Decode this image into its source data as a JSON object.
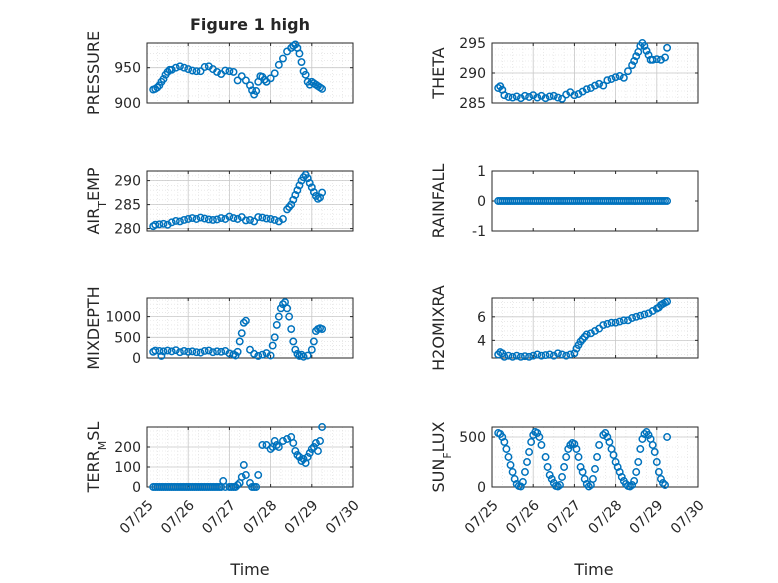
{
  "figure": {
    "title": "Figure 1 high",
    "xlabel": "Time"
  },
  "colors": {
    "marker": "#0072BD",
    "axes": "#262626",
    "grid": "#DCDCDC"
  },
  "chart_data": [
    {
      "type": "scatter",
      "ylabel": "PRESSURE",
      "xlim": [
        0,
        5
      ],
      "ylim": [
        900,
        985
      ],
      "yticks": [
        900,
        950
      ],
      "ytick_labels": [
        "900",
        "950"
      ],
      "xtick_labels": [],
      "title": "Figure 1 high",
      "grid": true,
      "x": [
        0.15,
        0.2,
        0.25,
        0.3,
        0.35,
        0.4,
        0.45,
        0.5,
        0.55,
        0.6,
        0.7,
        0.8,
        0.9,
        1.0,
        1.1,
        1.2,
        1.3,
        1.4,
        1.5,
        1.6,
        1.7,
        1.8,
        1.9,
        2.0,
        2.1,
        2.2,
        2.3,
        2.4,
        2.5,
        2.55,
        2.6,
        2.65,
        2.7,
        2.75,
        2.8,
        2.85,
        2.9,
        3.0,
        3.1,
        3.2,
        3.3,
        3.4,
        3.5,
        3.55,
        3.6,
        3.65,
        3.7,
        3.75,
        3.8,
        3.85,
        3.9,
        3.95,
        4.0,
        4.05,
        4.1,
        4.15,
        4.2,
        4.25
      ],
      "y": [
        919,
        920,
        922,
        925,
        930,
        934,
        940,
        944,
        947,
        947,
        950,
        952,
        950,
        948,
        946,
        945,
        945,
        951,
        952,
        948,
        944,
        941,
        946,
        945,
        944,
        932,
        938,
        932,
        925,
        918,
        912,
        917,
        930,
        938,
        937,
        933,
        930,
        935,
        942,
        954,
        963,
        973,
        978,
        981,
        983,
        978,
        970,
        958,
        945,
        940,
        930,
        926,
        930,
        928,
        926,
        924,
        922,
        920
      ]
    },
    {
      "type": "scatter",
      "ylabel": "THETA",
      "xlim": [
        0,
        5
      ],
      "ylim": [
        285,
        295
      ],
      "yticks": [
        285,
        290,
        295
      ],
      "ytick_labels": [
        "285",
        "290",
        "295"
      ],
      "xtick_labels": [],
      "grid": true,
      "x": [
        0.15,
        0.2,
        0.25,
        0.3,
        0.4,
        0.5,
        0.6,
        0.7,
        0.8,
        0.9,
        1.0,
        1.1,
        1.2,
        1.3,
        1.4,
        1.5,
        1.6,
        1.7,
        1.8,
        1.9,
        2.0,
        2.1,
        2.2,
        2.3,
        2.4,
        2.5,
        2.6,
        2.7,
        2.8,
        2.9,
        3.0,
        3.1,
        3.2,
        3.3,
        3.4,
        3.45,
        3.5,
        3.55,
        3.6,
        3.65,
        3.7,
        3.75,
        3.8,
        3.85,
        3.9,
        4.0,
        4.1,
        4.2,
        4.25
      ],
      "y": [
        287.5,
        287.8,
        287.2,
        286.3,
        286,
        285.9,
        286.1,
        285.8,
        286.2,
        286,
        286.3,
        285.9,
        286.2,
        285.8,
        286.1,
        286.2,
        285.9,
        285.7,
        286.4,
        286.8,
        286.3,
        286.5,
        286.9,
        287.3,
        287.5,
        287.9,
        288.2,
        287.9,
        288.8,
        289,
        289.3,
        289.5,
        289.2,
        290.3,
        291.3,
        292,
        292.8,
        293.5,
        294.5,
        295,
        294.5,
        293.7,
        293,
        292.2,
        292.2,
        292.3,
        292.2,
        292.6,
        294.2
      ]
    },
    {
      "type": "scatter",
      "ylabel": "AIR_TEMP",
      "xlim": [
        0,
        5
      ],
      "ylim": [
        279.5,
        292
      ],
      "yticks": [
        280,
        285,
        290
      ],
      "ytick_labels": [
        "280",
        "285",
        "290"
      ],
      "xtick_labels": [],
      "grid": true,
      "x": [
        0.15,
        0.2,
        0.3,
        0.4,
        0.5,
        0.6,
        0.7,
        0.8,
        0.9,
        1.0,
        1.1,
        1.2,
        1.3,
        1.4,
        1.5,
        1.6,
        1.7,
        1.8,
        1.9,
        2.0,
        2.1,
        2.2,
        2.3,
        2.4,
        2.5,
        2.6,
        2.7,
        2.8,
        2.9,
        3.0,
        3.1,
        3.2,
        3.3,
        3.4,
        3.45,
        3.5,
        3.55,
        3.6,
        3.65,
        3.7,
        3.75,
        3.8,
        3.85,
        3.9,
        3.95,
        4.0,
        4.05,
        4.1,
        4.15,
        4.2,
        4.25
      ],
      "y": [
        280.5,
        280.8,
        280.9,
        281,
        280.8,
        281.3,
        281.6,
        281.5,
        281.8,
        282,
        282.2,
        282,
        282.3,
        282.1,
        281.9,
        281.8,
        281.9,
        282.2,
        282,
        282.5,
        282.2,
        282,
        282.4,
        281.7,
        281.8,
        281.5,
        282.4,
        282.3,
        282.1,
        282,
        281.8,
        281.5,
        282,
        284,
        284.5,
        285,
        286,
        287,
        288,
        289,
        290,
        290.7,
        291.2,
        290.5,
        289.5,
        288.6,
        287.6,
        286.8,
        286.2,
        286.5,
        287.5
      ]
    },
    {
      "type": "scatter",
      "ylabel": "RAINFALL",
      "xlim": [
        0,
        5
      ],
      "ylim": [
        -1,
        1
      ],
      "yticks": [
        -1,
        0,
        1
      ],
      "ytick_labels": [
        "-1",
        "0",
        "1"
      ],
      "xtick_labels": [],
      "grid": false,
      "x_range": [
        0.15,
        4.25
      ],
      "constant_y": 0,
      "x": [
        0.15,
        0.2,
        0.25,
        0.3,
        0.35,
        0.4,
        0.45,
        0.5,
        0.55,
        0.6,
        0.65,
        0.7,
        0.75,
        0.8,
        0.85,
        0.9,
        0.95,
        1.0,
        1.05,
        1.1,
        1.15,
        1.2,
        1.25,
        1.3,
        1.35,
        1.4,
        1.45,
        1.5,
        1.55,
        1.6,
        1.65,
        1.7,
        1.75,
        1.8,
        1.85,
        1.9,
        1.95,
        2.0,
        2.05,
        2.1,
        2.15,
        2.2,
        2.25,
        2.3,
        2.35,
        2.4,
        2.45,
        2.5,
        2.55,
        2.6,
        2.65,
        2.7,
        2.75,
        2.8,
        2.85,
        2.9,
        2.95,
        3.0,
        3.05,
        3.1,
        3.15,
        3.2,
        3.25,
        3.3,
        3.35,
        3.4,
        3.45,
        3.5,
        3.55,
        3.6,
        3.65,
        3.7,
        3.75,
        3.8,
        3.85,
        3.9,
        3.95,
        4.0,
        4.05,
        4.1,
        4.15,
        4.2,
        4.25
      ],
      "y": [
        0,
        0,
        0,
        0,
        0,
        0,
        0,
        0,
        0,
        0,
        0,
        0,
        0,
        0,
        0,
        0,
        0,
        0,
        0,
        0,
        0,
        0,
        0,
        0,
        0,
        0,
        0,
        0,
        0,
        0,
        0,
        0,
        0,
        0,
        0,
        0,
        0,
        0,
        0,
        0,
        0,
        0,
        0,
        0,
        0,
        0,
        0,
        0,
        0,
        0,
        0,
        0,
        0,
        0,
        0,
        0,
        0,
        0,
        0,
        0,
        0,
        0,
        0,
        0,
        0,
        0,
        0,
        0,
        0,
        0,
        0,
        0,
        0,
        0,
        0,
        0,
        0,
        0,
        0,
        0,
        0,
        0,
        0
      ]
    },
    {
      "type": "scatter",
      "ylabel": "MIXDEPTH",
      "xlim": [
        0,
        5
      ],
      "ylim": [
        0,
        1450
      ],
      "yticks": [
        0,
        500,
        1000
      ],
      "ytick_labels": [
        "0",
        "500",
        "1000"
      ],
      "xtick_labels": [],
      "grid": true,
      "x": [
        0.15,
        0.2,
        0.3,
        0.35,
        0.4,
        0.5,
        0.6,
        0.7,
        0.8,
        0.9,
        1.0,
        1.1,
        1.2,
        1.3,
        1.4,
        1.5,
        1.6,
        1.7,
        1.8,
        1.9,
        2.0,
        2.1,
        2.15,
        2.2,
        2.25,
        2.3,
        2.35,
        2.4,
        2.5,
        2.6,
        2.7,
        2.8,
        2.9,
        3.0,
        3.05,
        3.1,
        3.15,
        3.2,
        3.25,
        3.3,
        3.35,
        3.4,
        3.45,
        3.5,
        3.55,
        3.6,
        3.65,
        3.7,
        3.75,
        3.8,
        3.9,
        4.0,
        4.05,
        4.1,
        4.15,
        4.2,
        4.25
      ],
      "y": [
        150,
        180,
        170,
        50,
        160,
        180,
        160,
        190,
        140,
        170,
        150,
        160,
        140,
        130,
        170,
        180,
        140,
        160,
        150,
        170,
        110,
        90,
        60,
        150,
        400,
        600,
        850,
        900,
        200,
        100,
        50,
        80,
        120,
        60,
        300,
        500,
        800,
        1000,
        1200,
        1300,
        1350,
        1200,
        1000,
        700,
        400,
        200,
        100,
        50,
        80,
        30,
        60,
        200,
        400,
        650,
        700,
        720,
        700
      ]
    },
    {
      "type": "scatter",
      "ylabel": "H2OMIXRA",
      "xlim": [
        0,
        5
      ],
      "ylim": [
        2.5,
        7.6
      ],
      "yticks": [
        4,
        6
      ],
      "ytick_labels": [
        "4",
        "6"
      ],
      "xtick_labels": [],
      "grid": true,
      "x": [
        0.15,
        0.2,
        0.25,
        0.3,
        0.4,
        0.5,
        0.6,
        0.7,
        0.8,
        0.9,
        1.0,
        1.1,
        1.2,
        1.3,
        1.4,
        1.5,
        1.6,
        1.7,
        1.8,
        1.9,
        2.0,
        2.05,
        2.1,
        2.15,
        2.2,
        2.25,
        2.3,
        2.4,
        2.5,
        2.6,
        2.7,
        2.8,
        2.9,
        3.0,
        3.1,
        3.2,
        3.3,
        3.4,
        3.5,
        3.6,
        3.7,
        3.8,
        3.9,
        4.0,
        4.05,
        4.1,
        4.15,
        4.2,
        4.25
      ],
      "y": [
        2.8,
        3.0,
        2.9,
        2.6,
        2.7,
        2.6,
        2.7,
        2.6,
        2.65,
        2.6,
        2.7,
        2.8,
        2.7,
        2.75,
        2.8,
        2.7,
        2.9,
        2.8,
        2.7,
        2.8,
        2.9,
        3.3,
        3.6,
        3.9,
        4.1,
        4.3,
        4.5,
        4.6,
        4.8,
        5.0,
        5.3,
        5.4,
        5.5,
        5.5,
        5.6,
        5.7,
        5.7,
        5.9,
        6.0,
        6.1,
        6.2,
        6.3,
        6.5,
        6.7,
        6.8,
        7.0,
        7.1,
        7.2,
        7.3
      ]
    },
    {
      "type": "scatter",
      "ylabel": "TERR_MSL",
      "xlim": [
        0,
        5
      ],
      "ylim": [
        0,
        300
      ],
      "yticks": [
        0,
        100,
        200
      ],
      "ytick_labels": [
        "0",
        "100",
        "200"
      ],
      "xtick_labels": [
        "07/25",
        "07/26",
        "07/27",
        "07/28",
        "07/29",
        "07/30"
      ],
      "grid": true,
      "x": [
        0.15,
        0.2,
        0.25,
        0.3,
        0.35,
        0.4,
        0.45,
        0.5,
        0.55,
        0.6,
        0.65,
        0.7,
        0.75,
        0.8,
        0.85,
        0.9,
        0.95,
        1.0,
        1.05,
        1.1,
        1.15,
        1.2,
        1.25,
        1.3,
        1.35,
        1.4,
        1.45,
        1.5,
        1.55,
        1.6,
        1.65,
        1.7,
        1.75,
        1.8,
        1.85,
        1.9,
        2.0,
        2.05,
        2.1,
        2.15,
        2.2,
        2.25,
        2.3,
        2.35,
        2.4,
        2.5,
        2.55,
        2.6,
        2.65,
        2.7,
        2.8,
        2.9,
        3.0,
        3.05,
        3.1,
        3.15,
        3.2,
        3.3,
        3.4,
        3.5,
        3.55,
        3.6,
        3.65,
        3.7,
        3.75,
        3.8,
        3.85,
        3.9,
        3.95,
        4.0,
        4.05,
        4.1,
        4.15,
        4.2,
        4.25
      ],
      "y": [
        0,
        0,
        0,
        0,
        0,
        0,
        0,
        0,
        0,
        0,
        0,
        0,
        0,
        0,
        0,
        0,
        0,
        0,
        0,
        0,
        0,
        0,
        0,
        0,
        0,
        0,
        0,
        0,
        0,
        0,
        0,
        0,
        0,
        0,
        30,
        0,
        0,
        0,
        0,
        0,
        10,
        20,
        50,
        110,
        60,
        20,
        0,
        0,
        0,
        60,
        210,
        210,
        190,
        200,
        230,
        210,
        200,
        230,
        240,
        250,
        220,
        180,
        160,
        150,
        130,
        140,
        120,
        150,
        170,
        190,
        200,
        220,
        180,
        230,
        300
      ]
    },
    {
      "type": "scatter",
      "ylabel": "SUN_FLUX",
      "xlim": [
        0,
        5
      ],
      "ylim": [
        0,
        600
      ],
      "yticks": [
        0,
        500
      ],
      "ytick_labels": [
        "0",
        "500"
      ],
      "xtick_labels": [
        "07/25",
        "07/26",
        "07/27",
        "07/28",
        "07/29",
        "07/30"
      ],
      "grid": true,
      "x": [
        0.15,
        0.2,
        0.25,
        0.3,
        0.35,
        0.4,
        0.45,
        0.5,
        0.55,
        0.6,
        0.65,
        0.7,
        0.75,
        0.8,
        0.85,
        0.9,
        0.95,
        1.0,
        1.05,
        1.1,
        1.15,
        1.2,
        1.3,
        1.35,
        1.4,
        1.45,
        1.5,
        1.55,
        1.6,
        1.65,
        1.7,
        1.75,
        1.8,
        1.85,
        1.9,
        1.95,
        2.0,
        2.05,
        2.1,
        2.15,
        2.2,
        2.25,
        2.3,
        2.35,
        2.4,
        2.45,
        2.5,
        2.55,
        2.6,
        2.7,
        2.75,
        2.8,
        2.85,
        2.9,
        2.95,
        3.0,
        3.05,
        3.1,
        3.15,
        3.2,
        3.25,
        3.3,
        3.35,
        3.4,
        3.45,
        3.5,
        3.55,
        3.6,
        3.65,
        3.7,
        3.75,
        3.8,
        3.85,
        3.9,
        3.95,
        4.0,
        4.05,
        4.1,
        4.15,
        4.2,
        4.25
      ],
      "y": [
        540,
        530,
        500,
        450,
        380,
        300,
        220,
        150,
        80,
        30,
        10,
        5,
        50,
        150,
        250,
        350,
        450,
        520,
        550,
        540,
        500,
        420,
        300,
        200,
        120,
        80,
        40,
        10,
        5,
        20,
        100,
        200,
        300,
        380,
        420,
        440,
        430,
        380,
        300,
        200,
        150,
        80,
        30,
        5,
        20,
        80,
        180,
        300,
        420,
        520,
        540,
        500,
        450,
        380,
        320,
        250,
        200,
        150,
        100,
        60,
        30,
        10,
        5,
        20,
        60,
        150,
        250,
        380,
        480,
        530,
        550,
        520,
        480,
        420,
        350,
        250,
        150,
        80,
        40,
        20,
        500
      ]
    }
  ]
}
